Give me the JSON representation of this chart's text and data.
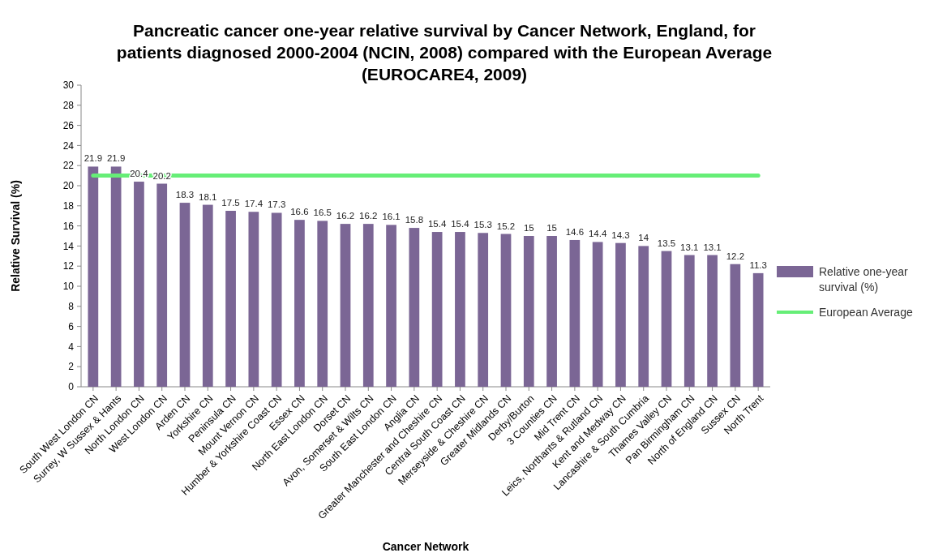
{
  "chart_data": {
    "type": "bar",
    "title": "Pancreatic cancer one-year relative survival by Cancer Network, England, for patients diagnosed 2000-2004 (NCIN, 2008) compared with the European Average (EUROCARE4, 2009)",
    "xlabel": "Cancer Network",
    "ylabel": "Relative Survival (%)",
    "categories": [
      "South West London CN",
      "Surrey, W Sussex & Hants",
      "North London CN",
      "West London CN",
      "Arden CN",
      "Yorkshire CN",
      "Peninsula CN",
      "Mount Vernon CN",
      "Humber & Yorkshire Coast CN",
      "Essex CN",
      "North East London CN",
      "Dorset CN",
      "Avon, Somerset & Wilts CN",
      "South East London CN",
      "Anglia CN",
      "Greater Manchester and Cheshire CN",
      "Central South Coast CN",
      "Merseyside & Cheshire CN",
      "Greater Midlands CN",
      "Derby/Burton",
      "3 Counties CN",
      "Mid Trent CN",
      "Leics, Northants & Rutland CN",
      "Kent and Medway CN",
      "Lancashire & South Cumbria",
      "Thames Valley CN",
      "Pan Birmingham CN",
      "North of England CN",
      "Sussex CN",
      "North Trent"
    ],
    "series": [
      {
        "name": "Relative one-year survival (%)",
        "color": "#7b6695",
        "values": [
          21.9,
          21.9,
          20.4,
          20.2,
          18.3,
          18.1,
          17.5,
          17.4,
          17.3,
          16.6,
          16.5,
          16.2,
          16.2,
          16.1,
          15.8,
          15.4,
          15.4,
          15.3,
          15.2,
          15,
          15,
          14.6,
          14.4,
          14.3,
          14,
          13.5,
          13.1,
          13.1,
          12.2,
          11.3
        ],
        "value_labels": [
          "21.9",
          "21.9",
          "20.4",
          "20.2",
          "18.3",
          "18.1",
          "17.5",
          "17.4",
          "17.3",
          "16.6",
          "16.5",
          "16.2",
          "16.2",
          "16.1",
          "15.8",
          "15.4",
          "15.4",
          "15.3",
          "15.2",
          "15",
          "15",
          "14.6",
          "14.4",
          "14.3",
          "14",
          "13.5",
          "13.1",
          "13.1",
          "12.2",
          "11.3"
        ]
      },
      {
        "name": "European Average",
        "type": "line",
        "color": "#66ee77",
        "values": [
          21,
          21,
          21,
          21,
          21,
          21,
          21,
          21,
          21,
          21,
          21,
          21,
          21,
          21,
          21,
          21,
          21,
          21,
          21,
          21,
          21,
          21,
          21,
          21,
          21,
          21,
          21,
          21,
          21,
          21
        ]
      }
    ],
    "ylim": [
      0,
      30
    ],
    "yticks": [
      0,
      2,
      4,
      6,
      8,
      10,
      12,
      14,
      16,
      18,
      20,
      22,
      24,
      26,
      28,
      30
    ],
    "legend": "right",
    "marker": "none"
  }
}
